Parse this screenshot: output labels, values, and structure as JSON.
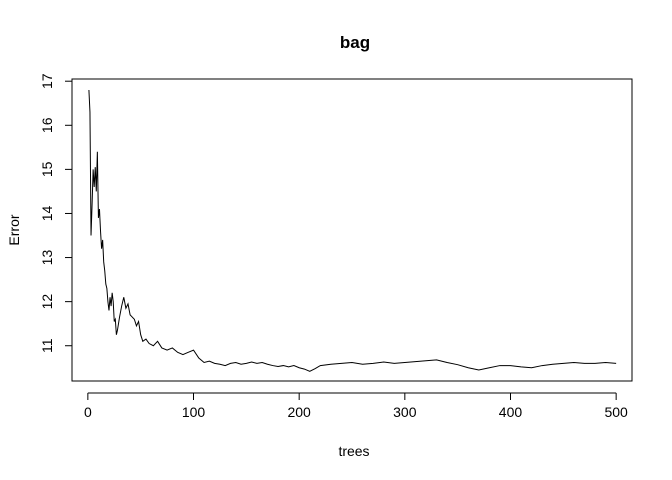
{
  "chart_data": {
    "type": "line",
    "title": "bag",
    "xlabel": "trees",
    "ylabel": "Error",
    "xlim": [
      -15,
      515
    ],
    "ylim": [
      10.2,
      17.05
    ],
    "xticks": [
      0,
      100,
      200,
      300,
      400,
      500
    ],
    "yticks": [
      11,
      12,
      13,
      14,
      15,
      16,
      17
    ],
    "grid": false,
    "legend": "none",
    "line_color": "#000000",
    "series": [
      {
        "x": [
          1,
          2,
          3,
          4,
          5,
          6,
          7,
          8,
          9,
          10,
          11,
          12,
          13,
          14,
          15,
          16,
          17,
          18,
          19,
          20,
          21,
          22,
          23,
          24,
          25,
          26,
          27,
          28,
          29,
          30,
          32,
          34,
          36,
          38,
          40,
          42,
          44,
          46,
          48,
          50,
          52,
          55,
          58,
          62,
          66,
          70,
          75,
          80,
          85,
          90,
          95,
          100,
          105,
          110,
          115,
          120,
          125,
          130,
          135,
          140,
          145,
          150,
          155,
          160,
          165,
          170,
          175,
          180,
          185,
          190,
          195,
          200,
          205,
          210,
          215,
          220,
          230,
          240,
          250,
          260,
          270,
          280,
          290,
          300,
          310,
          320,
          330,
          340,
          350,
          360,
          370,
          380,
          390,
          400,
          410,
          420,
          430,
          440,
          450,
          460,
          470,
          480,
          490,
          500
        ],
        "values": [
          16.8,
          16.3,
          13.5,
          14.2,
          15.0,
          14.6,
          15.05,
          14.5,
          15.4,
          13.9,
          14.1,
          13.6,
          13.2,
          13.4,
          12.9,
          12.7,
          12.4,
          12.3,
          12.0,
          11.8,
          12.1,
          11.9,
          12.2,
          12.0,
          11.55,
          11.6,
          11.25,
          11.35,
          11.5,
          11.65,
          11.9,
          12.1,
          11.85,
          11.95,
          11.7,
          11.65,
          11.6,
          11.45,
          11.55,
          11.25,
          11.1,
          11.15,
          11.05,
          11.0,
          11.1,
          10.95,
          10.9,
          10.95,
          10.85,
          10.8,
          10.85,
          10.9,
          10.72,
          10.62,
          10.65,
          10.6,
          10.58,
          10.55,
          10.6,
          10.62,
          10.58,
          10.6,
          10.63,
          10.6,
          10.62,
          10.58,
          10.55,
          10.53,
          10.55,
          10.52,
          10.55,
          10.5,
          10.47,
          10.42,
          10.48,
          10.55,
          10.58,
          10.6,
          10.62,
          10.58,
          10.6,
          10.63,
          10.6,
          10.62,
          10.64,
          10.66,
          10.68,
          10.62,
          10.57,
          10.5,
          10.45,
          10.5,
          10.55,
          10.55,
          10.52,
          10.5,
          10.55,
          10.58,
          10.6,
          10.62,
          10.6,
          10.6,
          10.62,
          10.6
        ]
      }
    ]
  }
}
